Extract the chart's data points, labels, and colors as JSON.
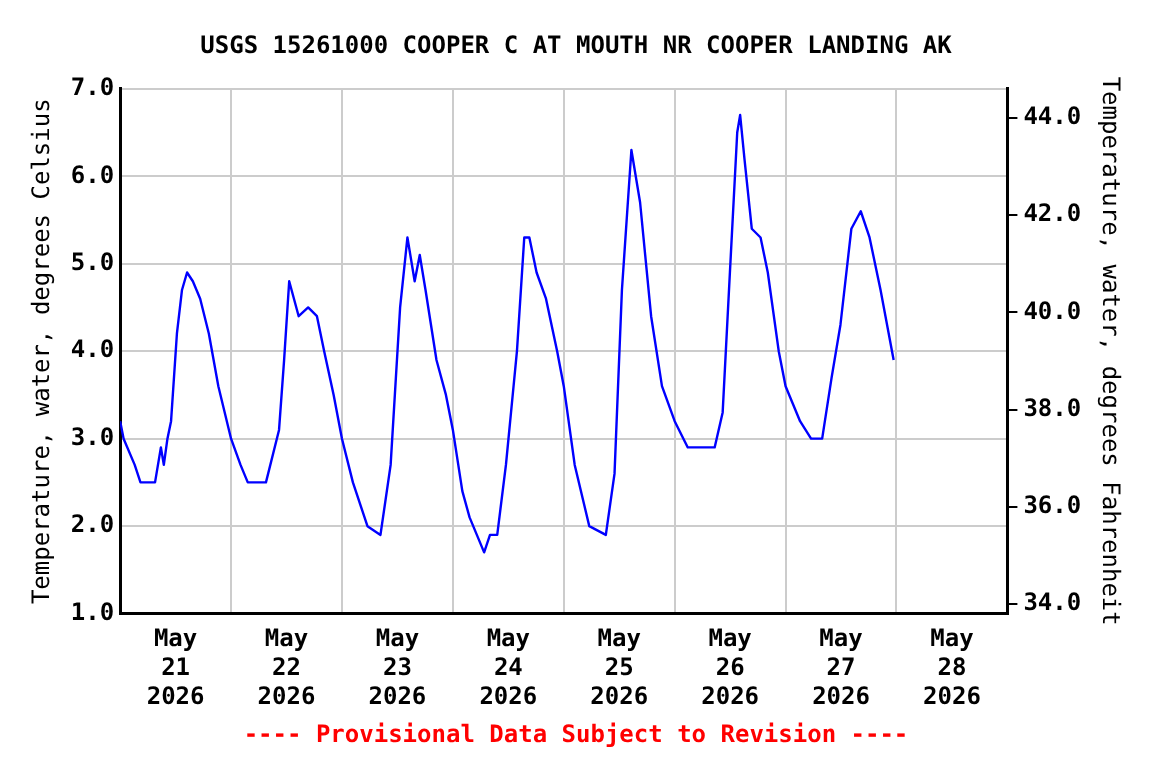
{
  "chart_data": {
    "type": "line",
    "title": "USGS 15261000 COOPER C AT MOUTH NR COOPER LANDING AK",
    "ylabel": "Temperature, water, degrees Celsius",
    "y2label": "Temperature, water, degrees Fahrenheit",
    "annotations": [
      "---- Provisional Data Subject to Revision ----"
    ],
    "x": [
      "2026-05-21T00:00",
      "2026-05-21T00:45",
      "2026-05-21T03:09",
      "2026-05-21T04:24",
      "2026-05-21T07:33",
      "2026-05-21T08:49",
      "2026-05-21T09:27",
      "2026-05-21T10:14",
      "2026-05-21T11:01",
      "2026-05-21T12:17",
      "2026-05-21T13:23",
      "2026-05-21T14:29",
      "2026-05-21T15:44",
      "2026-05-21T17:19",
      "2026-05-21T19:12",
      "2026-05-21T21:15",
      "2026-05-22T00:00",
      "2026-05-22T02:03",
      "2026-05-22T03:37",
      "2026-05-22T07:33",
      "2026-05-22T10:23",
      "2026-05-22T11:29",
      "2026-05-22T12:35",
      "2026-05-22T14:38",
      "2026-05-22T16:41",
      "2026-05-22T18:35",
      "2026-05-22T20:09",
      "2026-05-22T22:12",
      "2026-05-23T00:00",
      "2026-05-23T02:22",
      "2026-05-23T05:31",
      "2026-05-23T08:20",
      "2026-05-23T10:32",
      "2026-05-23T12:35",
      "2026-05-23T14:10",
      "2026-05-23T15:44",
      "2026-05-23T16:50",
      "2026-05-23T18:05",
      "2026-05-23T20:27",
      "2026-05-23T22:30",
      "2026-05-24T00:00",
      "2026-05-24T02:03",
      "2026-05-24T03:37",
      "2026-05-24T06:46",
      "2026-05-24T08:02",
      "2026-05-24T09:36",
      "2026-05-24T11:29",
      "2026-05-24T13:52",
      "2026-05-24T15:27",
      "2026-05-24T16:33",
      "2026-05-24T18:07",
      "2026-05-24T20:09",
      "2026-05-24T22:34",
      "2026-05-25T00:00",
      "2026-05-25T02:22",
      "2026-05-25T05:31",
      "2026-05-25T09:06",
      "2026-05-25T10:59",
      "2026-05-25T12:35",
      "2026-05-25T14:38",
      "2026-05-25T16:31",
      "2026-05-25T18:54",
      "2026-05-25T21:15",
      "2026-05-26T00:00",
      "2026-05-26T02:50",
      "2026-05-26T08:39",
      "2026-05-26T10:23",
      "2026-05-26T11:57",
      "2026-05-26T13:32",
      "2026-05-26T14:10",
      "2026-05-26T15:06",
      "2026-05-26T16:41",
      "2026-05-26T18:35",
      "2026-05-26T20:09",
      "2026-05-26T22:31",
      "2026-05-27T00:00",
      "2026-05-27T01:34",
      "2026-05-27T03:08",
      "2026-05-27T05:31",
      "2026-05-27T07:55",
      "2026-05-27T09:58",
      "2026-05-27T11:52",
      "2026-05-27T14:14",
      "2026-05-27T16:16",
      "2026-05-27T18:10",
      "2026-05-27T20:33",
      "2026-05-27T23:23"
    ],
    "series": [
      {
        "color": "#0000ff",
        "values": [
          3.2,
          3.0,
          2.7,
          2.5,
          2.5,
          2.9,
          2.7,
          3.0,
          3.2,
          4.2,
          4.7,
          4.9,
          4.8,
          4.6,
          4.2,
          3.6,
          3.0,
          2.7,
          2.5,
          2.5,
          3.1,
          3.9,
          4.8,
          4.4,
          4.5,
          4.4,
          4.0,
          3.5,
          3.0,
          2.5,
          2.0,
          1.9,
          2.7,
          4.5,
          5.3,
          4.8,
          5.1,
          4.7,
          3.9,
          3.5,
          3.1,
          2.4,
          2.1,
          1.7,
          1.9,
          1.9,
          2.7,
          4.0,
          5.3,
          5.3,
          4.9,
          4.6,
          4.0,
          3.6,
          2.7,
          2.0,
          1.9,
          2.6,
          4.7,
          6.3,
          5.7,
          4.4,
          3.6,
          3.2,
          2.9,
          2.9,
          3.3,
          4.9,
          6.5,
          6.7,
          6.2,
          5.4,
          5.3,
          4.9,
          4.0,
          3.6,
          3.4,
          3.2,
          3.0,
          3.0,
          3.7,
          4.3,
          5.4,
          5.6,
          5.3,
          4.7,
          3.9
        ]
      }
    ],
    "xlim": [
      "2026-05-21T00:00",
      "2026-05-29T00:00"
    ],
    "xticks": [
      {
        "value": "2026-05-21T12:00",
        "label": "May\n21\n2026"
      },
      {
        "value": "2026-05-22T00:00",
        "label": null
      },
      {
        "value": "2026-05-22T12:00",
        "label": "May\n22\n2026"
      },
      {
        "value": "2026-05-23T00:00",
        "label": null
      },
      {
        "value": "2026-05-23T12:00",
        "label": "May\n23\n2026"
      },
      {
        "value": "2026-05-24T00:00",
        "label": null
      },
      {
        "value": "2026-05-24T12:00",
        "label": "May\n24\n2026"
      },
      {
        "value": "2026-05-25T00:00",
        "label": null
      },
      {
        "value": "2026-05-25T12:00",
        "label": "May\n25\n2026"
      },
      {
        "value": "2026-05-26T00:00",
        "label": null
      },
      {
        "value": "2026-05-26T12:00",
        "label": "May\n26\n2026"
      },
      {
        "value": "2026-05-27T00:00",
        "label": null
      },
      {
        "value": "2026-05-27T12:00",
        "label": "May\n27\n2026"
      },
      {
        "value": "2026-05-28T00:00",
        "label": null
      },
      {
        "value": "2026-05-28T12:00",
        "label": "May\n28\n2026"
      }
    ],
    "ylim": [
      1.0,
      7.0
    ],
    "yticks": [
      {
        "value": 1,
        "label": "1.0"
      },
      {
        "value": 2,
        "label": "2.0"
      },
      {
        "value": 3,
        "label": "3.0"
      },
      {
        "value": 4,
        "label": "4.0"
      },
      {
        "value": 5,
        "label": "5.0"
      },
      {
        "value": 6,
        "label": "6.0"
      },
      {
        "value": 7,
        "label": "7.0"
      }
    ],
    "y2lim": [
      33.8,
      44.6
    ],
    "y2ticks": [
      {
        "value": 34,
        "label": "34.0"
      },
      {
        "value": 36,
        "label": "36.0"
      },
      {
        "value": 38,
        "label": "38.0"
      },
      {
        "value": 40,
        "label": "40.0"
      },
      {
        "value": 42,
        "label": "42.0"
      },
      {
        "value": 44,
        "label": "44.0"
      }
    ],
    "grid": true,
    "legend": false,
    "marker": "none",
    "line_style": "solid"
  }
}
